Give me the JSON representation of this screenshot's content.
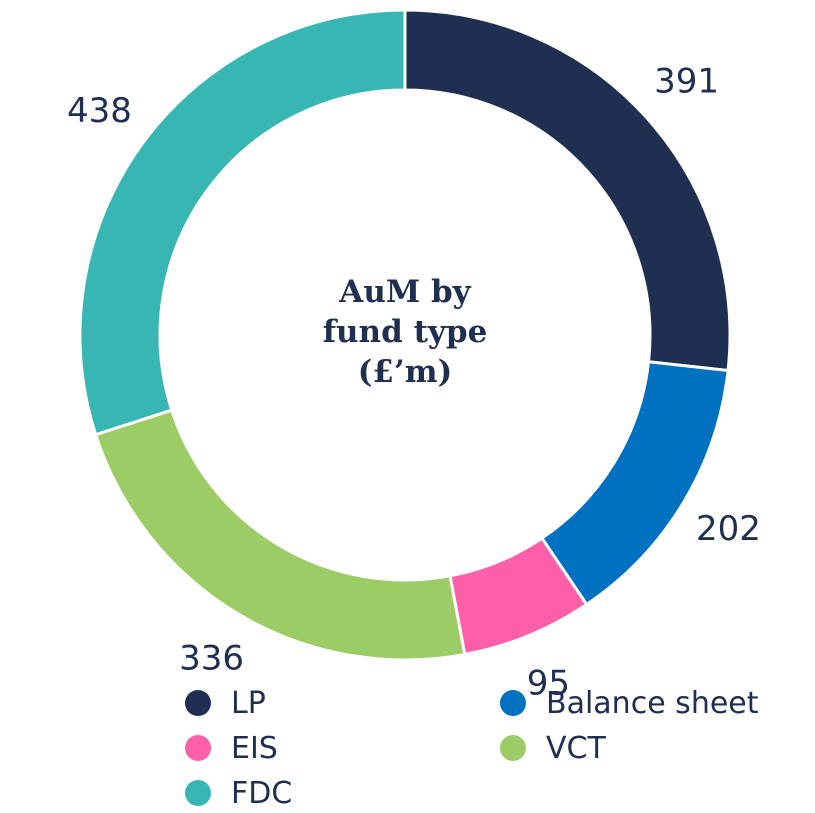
{
  "chart_data": {
    "type": "donut",
    "title": "AuM by fund type (£’m)",
    "categories": [
      "LP",
      "Balance sheet",
      "EIS",
      "VCT",
      "FDC"
    ],
    "values": [
      391,
      202,
      95,
      336,
      438
    ],
    "colors": [
      "#1f2f52",
      "#0070c0",
      "#ff5fa8",
      "#9ccc65",
      "#38b6b3"
    ],
    "legend": "bottom"
  }
}
